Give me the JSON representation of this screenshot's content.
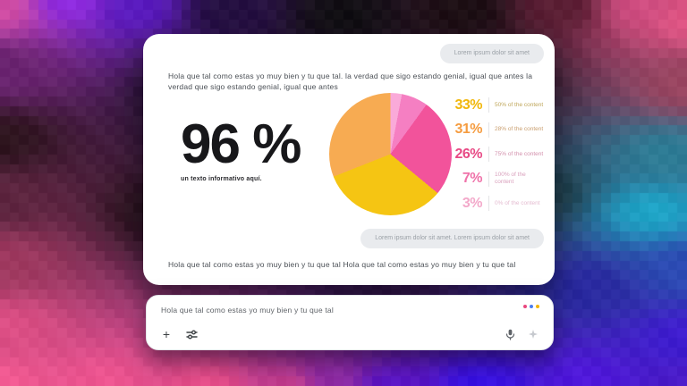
{
  "card": {
    "bubble_top": "Lorem ipsum dolor sit amet",
    "paragraph_top": "Hola que tal como estas yo muy bien y tu que tal. la verdad que sigo estando genial, igual que antes la verdad que sigo estando genial, igual que antes",
    "stat_value": "96 %",
    "stat_caption": "un texto informativo aquí.",
    "bubble_bottom": "Lorem ipsum dolor sit amet. Lorem ipsum dolor sit amet",
    "paragraph_bottom": "Hola que tal como estas yo muy bien y tu que tal Hola que tal como estas yo muy bien y tu que tal"
  },
  "chart_data": {
    "type": "pie",
    "title": "",
    "legend_position": "right",
    "slices": [
      {
        "pct": "33%",
        "value": 33,
        "label": "50% of the content",
        "color": "#F5C513",
        "num_color": "#F1B70B",
        "label_color": "#BFA65A"
      },
      {
        "pct": "31%",
        "value": 31,
        "label": "28% of the content",
        "color": "#F7AB52",
        "num_color": "#F59C40",
        "label_color": "#C99E6E"
      },
      {
        "pct": "26%",
        "value": 26,
        "label": "75% of the content",
        "color": "#F2539B",
        "num_color": "#E84A85",
        "label_color": "#D390AC"
      },
      {
        "pct": "7%",
        "value": 7,
        "label": "100% of the content",
        "color": "#F57FC2",
        "num_color": "#EF72A9",
        "label_color": "#D9A0BC"
      },
      {
        "pct": "3%",
        "value": 3,
        "label": "0% of the content",
        "color": "#FAAAD9",
        "num_color": "#F3A9CA",
        "label_color": "#E4BBD0"
      }
    ]
  },
  "composer": {
    "input_value": "Hola que tal como estas yo muy bien y tu que tal",
    "dot_colors": [
      "#E8477E",
      "#4A7DF0",
      "#F2B60A"
    ]
  }
}
